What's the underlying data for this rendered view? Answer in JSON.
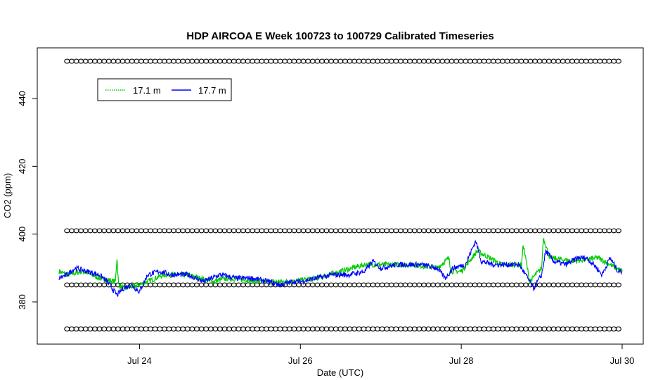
{
  "chart_data": {
    "type": "line",
    "title": "HDP AIRCOA E  Week 100723 to 100729  Calibrated Timeseries",
    "xlabel": "Date (UTC)",
    "ylabel": "CO2 (ppm)",
    "xlim": [
      23.0,
      30.0
    ],
    "ylim": [
      368,
      452
    ],
    "xticks": [
      {
        "value": 24,
        "label": "Jul 24"
      },
      {
        "value": 26,
        "label": "Jul 26"
      },
      {
        "value": 28,
        "label": "Jul 28"
      },
      {
        "value": 30,
        "label": "Jul 30"
      }
    ],
    "yticks": [
      380,
      400,
      420,
      440
    ],
    "grid": false,
    "legend": {
      "position": "top-left",
      "entries": [
        {
          "label": "17.1 m",
          "color": "#00cc00",
          "style": "dotted"
        },
        {
          "label": "17.7 m",
          "color": "#0000ff",
          "style": "solid"
        }
      ]
    },
    "calibration_levels": [
      451,
      401,
      385,
      372
    ],
    "series": [
      {
        "name": "17.1 m",
        "color": "#00cc00",
        "x": [
          23.0,
          23.1,
          23.3,
          23.5,
          23.7,
          23.72,
          23.74,
          23.8,
          24.0,
          24.3,
          24.6,
          24.9,
          25.1,
          25.5,
          25.9,
          26.2,
          26.5,
          26.8,
          27.0,
          27.4,
          27.7,
          27.85,
          27.87,
          28.0,
          28.2,
          28.5,
          28.75,
          28.77,
          28.85,
          29.0,
          29.02,
          29.1,
          29.4,
          29.7,
          29.85,
          30.0
        ],
        "y": [
          389,
          388,
          389,
          387,
          386,
          393,
          385,
          384,
          385,
          388,
          388,
          386,
          387,
          386,
          386,
          387,
          389,
          391,
          391,
          391,
          390,
          393,
          389,
          389,
          395,
          391,
          391,
          397,
          386,
          390,
          399,
          393,
          392,
          393,
          391,
          389
        ]
      },
      {
        "name": "17.7 m",
        "color": "#0000ff",
        "x": [
          23.0,
          23.1,
          23.2,
          23.35,
          23.5,
          23.6,
          23.72,
          23.8,
          23.9,
          24.0,
          24.1,
          24.25,
          24.4,
          24.6,
          24.8,
          25.0,
          25.2,
          25.4,
          25.6,
          25.75,
          25.9,
          26.0,
          26.2,
          26.4,
          26.6,
          26.8,
          26.9,
          27.0,
          27.2,
          27.5,
          27.7,
          27.8,
          27.9,
          28.05,
          28.18,
          28.25,
          28.4,
          28.6,
          28.72,
          28.8,
          28.9,
          28.95,
          29.0,
          29.05,
          29.15,
          29.3,
          29.45,
          29.55,
          29.65,
          29.75,
          29.85,
          29.95,
          30.0
        ],
        "y": [
          387,
          388,
          390,
          389,
          388,
          386,
          382,
          384,
          385,
          383,
          388,
          389,
          388,
          388,
          386,
          388,
          387,
          387,
          386,
          385,
          386,
          386,
          387,
          388,
          388,
          389,
          392,
          390,
          391,
          391,
          390,
          387,
          390,
          391,
          398,
          392,
          391,
          391,
          391,
          388,
          384,
          386,
          388,
          395,
          392,
          391,
          393,
          393,
          391,
          388,
          393,
          389,
          389
        ]
      }
    ]
  }
}
